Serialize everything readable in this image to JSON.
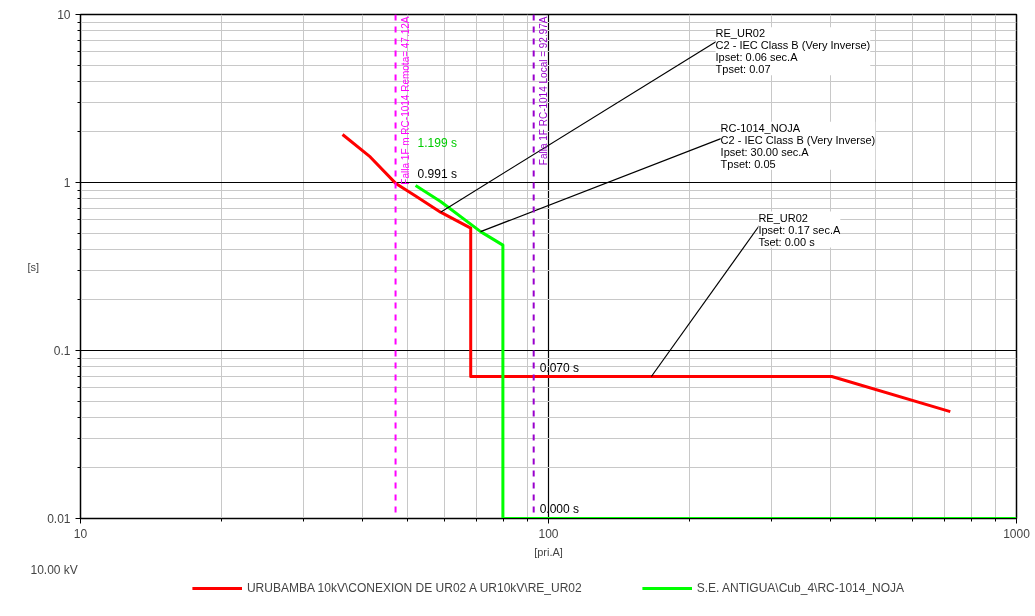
{
  "chart_data": {
    "type": "line",
    "xlabel": "[pri.A]",
    "ylabel": "[s]",
    "log": "xy",
    "grid": true,
    "legend": "bottom",
    "marker": "none",
    "line_style": "solid",
    "xlim": [
      10,
      1000
    ],
    "ylim": [
      0.01,
      10
    ],
    "xticks": [
      10,
      {
        "value": 20,
        "label": null
      },
      {
        "value": 30,
        "label": null
      },
      {
        "value": 40,
        "label": null
      },
      {
        "value": 50,
        "label": null
      },
      {
        "value": 60,
        "label": null
      },
      {
        "value": 70,
        "label": null
      },
      {
        "value": 80,
        "label": null
      },
      {
        "value": 90,
        "label": null
      },
      100,
      {
        "value": 200,
        "label": null
      },
      {
        "value": 300,
        "label": null
      },
      {
        "value": 400,
        "label": null
      },
      {
        "value": 500,
        "label": null
      },
      {
        "value": 600,
        "label": null
      },
      {
        "value": 700,
        "label": null
      },
      {
        "value": 800,
        "label": null
      },
      {
        "value": 900,
        "label": null
      },
      1000
    ],
    "yticks": [
      0.01,
      {
        "value": 0.02,
        "label": null
      },
      {
        "value": 0.03,
        "label": null
      },
      {
        "value": 0.04,
        "label": null
      },
      {
        "value": 0.05,
        "label": null
      },
      {
        "value": 0.06,
        "label": null
      },
      {
        "value": 0.07,
        "label": null
      },
      {
        "value": 0.08,
        "label": null
      },
      {
        "value": 0.09,
        "label": null
      },
      0.1,
      {
        "value": 0.2,
        "label": null
      },
      {
        "value": 0.3,
        "label": null
      },
      {
        "value": 0.4,
        "label": null
      },
      {
        "value": 0.5,
        "label": null
      },
      {
        "value": 0.6,
        "label": null
      },
      {
        "value": 0.7,
        "label": null
      },
      {
        "value": 0.8,
        "label": null
      },
      {
        "value": 0.9,
        "label": null
      },
      1,
      {
        "value": 2,
        "label": null
      },
      {
        "value": 3,
        "label": null
      },
      {
        "value": 4,
        "label": null
      },
      {
        "value": 5,
        "label": null
      },
      {
        "value": 6,
        "label": null
      },
      {
        "value": 7,
        "label": null
      },
      {
        "value": 8,
        "label": null
      },
      {
        "value": 9,
        "label": null
      },
      10
    ],
    "series": [
      {
        "name": "URUBAMBA 10kV\\CONEXION DE UR02 A UR10kV\\RE_UR02",
        "color": "#ff0000",
        "x": [
          36.3,
          41.6,
          47.1,
          52.0,
          58.8,
          68.2,
          68.2,
          96.4,
          119.7,
          403,
          722
        ],
        "values": [
          1.93,
          1.42,
          0.991,
          0.83,
          0.666,
          0.535,
          0.07,
          0.07,
          0.07,
          0.07,
          0.0433
        ]
      },
      {
        "name": "S.E. ANTIGUA\\Cub_4\\RC-1014_NOJA",
        "color": "#00ff00",
        "x": [
          52.0,
          58.8,
          71.6,
          79.9,
          79.9,
          1000
        ],
        "values": [
          0.96,
          0.771,
          0.51,
          0.424,
          0.01,
          0.01
        ]
      }
    ],
    "ref_lines": [
      {
        "axis": "x",
        "value": 47.12,
        "label": "Falla 1F m RC-1014 Remota= 47.12A",
        "color": "#ff00ff",
        "line_style": "dashed"
      },
      {
        "axis": "x",
        "value": 92.97,
        "label": "Falla 1F RC-1014 Local = 92.97A",
        "color": "#9900cc",
        "line_style": "dashed"
      }
    ],
    "annotations": [
      {
        "text": "1.199 s",
        "x": 47.12,
        "y": 1.199
      },
      {
        "text": "0.991 s",
        "x": 47.12,
        "y": 0.991
      },
      {
        "text": "0.070 s",
        "x": 92.97,
        "y": 0.07
      },
      {
        "text": "0.000 s",
        "x": 92.97,
        "y": 0.01
      },
      {
        "text": "RE_UR02\nC2 - IEC Class B (Very Inverse)\nIpset: 0.06 sec.A\nTpset: 0.07",
        "x": 58.8,
        "y": 0.666
      },
      {
        "text": "RC-1014_NOJA\nC2 - IEC Class B (Very Inverse)\nIpset: 30.00 sec.A\nTpset: 0.05",
        "x": 71.6,
        "y": 0.51
      },
      {
        "text": "RE_UR02\nIpset: 0.17 sec.A\nTset: 0.00 s",
        "x": 165.9,
        "y": 0.07
      },
      "10.00 kV"
    ]
  }
}
